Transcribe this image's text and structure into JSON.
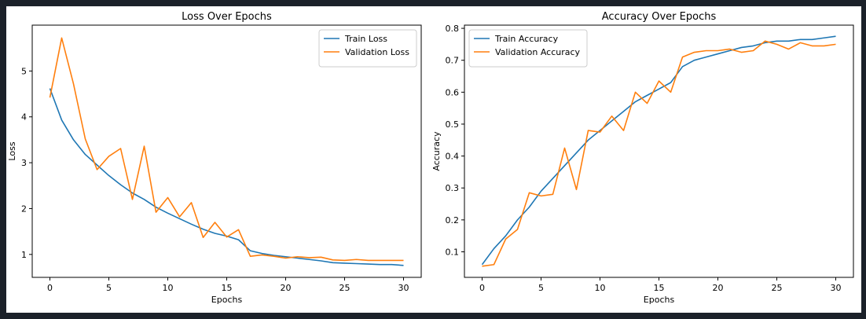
{
  "chart_data": [
    {
      "type": "line",
      "title": "Loss Over Epochs",
      "xlabel": "Epochs",
      "ylabel": "Loss",
      "xlim": [
        -1.5,
        31.5
      ],
      "ylim": [
        0.5,
        6.0
      ],
      "xticks": [
        0,
        5,
        10,
        15,
        20,
        25,
        30
      ],
      "yticks": [
        1,
        2,
        3,
        4,
        5
      ],
      "legend_position": "top-right",
      "x": [
        0,
        1,
        2,
        3,
        4,
        5,
        6,
        7,
        8,
        9,
        10,
        11,
        12,
        13,
        14,
        15,
        16,
        17,
        18,
        19,
        20,
        21,
        22,
        23,
        24,
        25,
        26,
        27,
        28,
        29,
        30
      ],
      "series": [
        {
          "name": "Train Loss",
          "color": "#1f77b4",
          "values": [
            4.62,
            3.93,
            3.5,
            3.18,
            2.95,
            2.72,
            2.52,
            2.34,
            2.2,
            2.03,
            1.9,
            1.78,
            1.66,
            1.55,
            1.46,
            1.4,
            1.32,
            1.08,
            1.02,
            0.98,
            0.95,
            0.92,
            0.89,
            0.86,
            0.82,
            0.81,
            0.8,
            0.79,
            0.78,
            0.78,
            0.76
          ]
        },
        {
          "name": "Validation Loss",
          "color": "#ff7f0e",
          "values": [
            4.42,
            5.72,
            4.72,
            3.52,
            2.85,
            3.14,
            3.31,
            2.2,
            3.36,
            1.92,
            2.24,
            1.82,
            2.13,
            1.37,
            1.7,
            1.38,
            1.54,
            0.96,
            0.99,
            0.96,
            0.92,
            0.95,
            0.93,
            0.94,
            0.88,
            0.87,
            0.89,
            0.87,
            0.87,
            0.87,
            0.87
          ]
        }
      ]
    },
    {
      "type": "line",
      "title": "Accuracy Over Epochs",
      "xlabel": "Epochs",
      "ylabel": "Accuracy",
      "xlim": [
        -1.5,
        31.5
      ],
      "ylim": [
        0.02,
        0.81
      ],
      "xticks": [
        0,
        5,
        10,
        15,
        20,
        25,
        30
      ],
      "yticks": [
        0.1,
        0.2,
        0.3,
        0.4,
        0.5,
        0.6,
        0.7,
        0.8
      ],
      "legend_position": "top-left",
      "x": [
        0,
        1,
        2,
        3,
        4,
        5,
        6,
        7,
        8,
        9,
        10,
        11,
        12,
        13,
        14,
        15,
        16,
        17,
        18,
        19,
        20,
        21,
        22,
        23,
        24,
        25,
        26,
        27,
        28,
        29,
        30
      ],
      "series": [
        {
          "name": "Train Accuracy",
          "color": "#1f77b4",
          "values": [
            0.06,
            0.11,
            0.15,
            0.2,
            0.24,
            0.29,
            0.33,
            0.37,
            0.41,
            0.45,
            0.48,
            0.51,
            0.54,
            0.57,
            0.59,
            0.61,
            0.63,
            0.68,
            0.7,
            0.71,
            0.72,
            0.73,
            0.74,
            0.745,
            0.755,
            0.76,
            0.76,
            0.765,
            0.765,
            0.77,
            0.775
          ]
        },
        {
          "name": "Validation Accuracy",
          "color": "#ff7f0e",
          "values": [
            0.055,
            0.06,
            0.14,
            0.17,
            0.285,
            0.275,
            0.28,
            0.425,
            0.295,
            0.48,
            0.475,
            0.525,
            0.48,
            0.6,
            0.565,
            0.635,
            0.6,
            0.71,
            0.725,
            0.73,
            0.73,
            0.735,
            0.725,
            0.73,
            0.76,
            0.75,
            0.735,
            0.755,
            0.745,
            0.745,
            0.75
          ]
        }
      ]
    }
  ]
}
